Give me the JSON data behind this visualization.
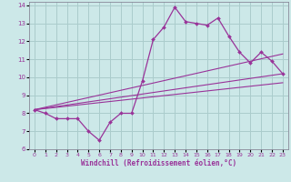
{
  "xlabel": "Windchill (Refroidissement éolien,°C)",
  "bg_color": "#cce8e8",
  "grid_color": "#aacccc",
  "line_color": "#993399",
  "xlim": [
    -0.5,
    23.5
  ],
  "ylim": [
    6,
    14.2
  ],
  "xticks": [
    0,
    1,
    2,
    3,
    4,
    5,
    6,
    7,
    8,
    9,
    10,
    11,
    12,
    13,
    14,
    15,
    16,
    17,
    18,
    19,
    20,
    21,
    22,
    23
  ],
  "yticks": [
    6,
    7,
    8,
    9,
    10,
    11,
    12,
    13,
    14
  ],
  "main_x": [
    0,
    1,
    2,
    3,
    4,
    5,
    6,
    7,
    8,
    9,
    10,
    11,
    12,
    13,
    14,
    15,
    16,
    17,
    18,
    19,
    20,
    21,
    22,
    23
  ],
  "main_y": [
    8.2,
    8.0,
    7.7,
    7.7,
    7.7,
    7.0,
    6.5,
    7.5,
    8.0,
    8.0,
    9.8,
    12.1,
    12.8,
    13.9,
    13.1,
    13.0,
    12.9,
    13.3,
    12.3,
    11.4,
    10.8,
    11.4,
    10.9,
    10.2
  ],
  "trend1_x": [
    0,
    23
  ],
  "trend1_y": [
    8.2,
    9.7
  ],
  "trend2_x": [
    0,
    23
  ],
  "trend2_y": [
    8.2,
    10.2
  ],
  "trend3_x": [
    0,
    23
  ],
  "trend3_y": [
    8.2,
    11.3
  ]
}
